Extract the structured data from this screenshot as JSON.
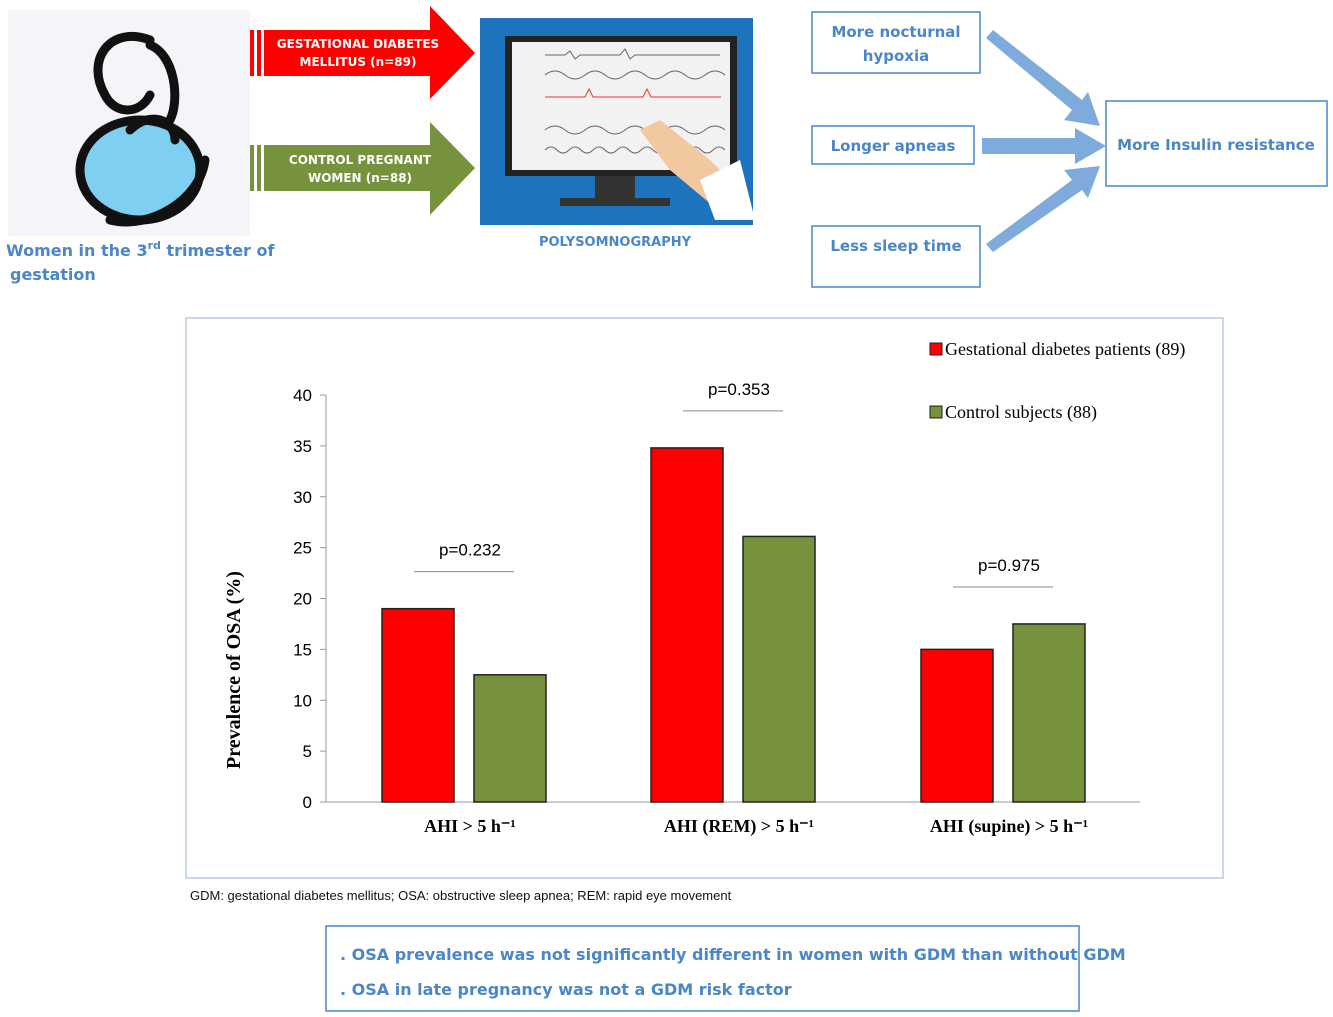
{
  "top": {
    "women_label": {
      "lead": "Women in the 3",
      "superscript": "rd",
      "tail": " trimester of",
      "second_line": "gestation"
    },
    "gdm_arrow": {
      "lines": [
        "GESTATIONAL DIABETES",
        "MELLITUS (n=89)"
      ]
    },
    "control_arrow": {
      "lines": [
        "CONTROL PREGNANT",
        "WOMEN (n=88)"
      ]
    },
    "psg_label": "POLYSOMNOGRAPHY",
    "findings": [
      {
        "lines": [
          "More nocturnal",
          "hypoxia"
        ]
      },
      {
        "lines": [
          "Longer apneas"
        ]
      },
      {
        "lines": [
          "Less sleep time"
        ]
      }
    ],
    "result": "More Insulin resistance"
  },
  "chart_data": {
    "type": "bar",
    "y_label": "Prevalence of OSA (%)",
    "categories": [
      "AHI > 5 h⁻¹",
      "AHI (REM) > 5 h⁻¹",
      "AHI (supine) > 5 h⁻¹"
    ],
    "series": [
      {
        "name": "Gestational diabetes patients (89)",
        "color": "#ff0000",
        "values": [
          19,
          34.8,
          15
        ]
      },
      {
        "name": "Control subjects (88)",
        "color": "#76923c",
        "values": [
          12.5,
          26.1,
          17.5
        ]
      }
    ],
    "annotations": [
      "p=0.232",
      "p=0.353",
      "p=0.975"
    ],
    "ylim": [
      0,
      40
    ],
    "yticks": [
      0,
      5,
      10,
      15,
      20,
      25,
      30,
      35,
      40
    ],
    "legend": "top-right",
    "grid": false
  },
  "footnote": "GDM: gestational diabetes mellitus; OSA: obstructive sleep apnea; REM: rapid eye movement",
  "conclusions": [
    ". OSA prevalence was not significantly different in women with GDM than without GDM",
    ". OSA in late pregnancy was not a GDM risk factor"
  ]
}
